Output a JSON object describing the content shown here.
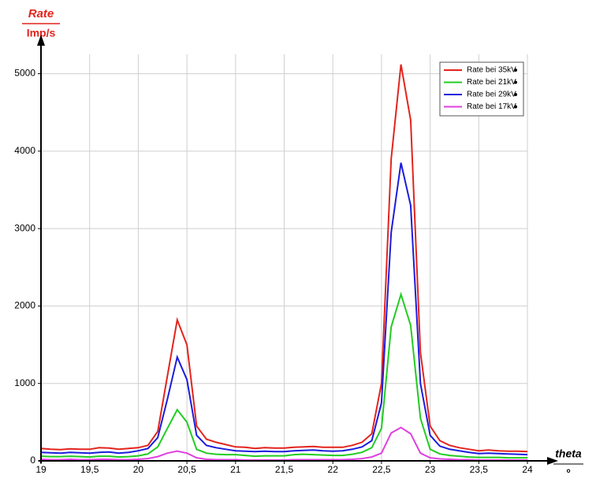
{
  "chart_data": {
    "type": "line",
    "y_label": "Rate",
    "y_unit": "Imp/s",
    "x_label": "theta",
    "x_unit": "°",
    "x": [
      19,
      19.1,
      19.2,
      19.3,
      19.4,
      19.5,
      19.6,
      19.7,
      19.8,
      19.9,
      20,
      20.1,
      20.2,
      20.3,
      20.4,
      20.5,
      20.6,
      20.7,
      20.8,
      20.9,
      21,
      21.1,
      21.2,
      21.3,
      21.4,
      21.5,
      21.6,
      21.7,
      21.8,
      21.9,
      22,
      22.1,
      22.2,
      22.3,
      22.4,
      22.5,
      22.6,
      22.7,
      22.8,
      22.9,
      23,
      23.1,
      23.2,
      23.3,
      23.4,
      23.5,
      23.6,
      23.7,
      23.8,
      23.9,
      24
    ],
    "series": [
      {
        "name": "Rate bei 35kV",
        "color": "#e3241c",
        "values": [
          160,
          150,
          145,
          155,
          150,
          150,
          170,
          165,
          150,
          160,
          170,
          200,
          380,
          1100,
          1820,
          1500,
          450,
          280,
          240,
          210,
          180,
          175,
          160,
          170,
          165,
          165,
          175,
          180,
          185,
          175,
          175,
          175,
          200,
          240,
          350,
          1000,
          3900,
          5120,
          4400,
          1400,
          450,
          260,
          200,
          170,
          150,
          130,
          140,
          130,
          125,
          125,
          120
        ]
      },
      {
        "name": "Rate bei 21kV",
        "color": "#22cc22",
        "values": [
          60,
          55,
          55,
          60,
          55,
          50,
          60,
          60,
          50,
          55,
          65,
          90,
          180,
          420,
          660,
          500,
          150,
          100,
          85,
          80,
          80,
          70,
          60,
          65,
          65,
          65,
          80,
          85,
          80,
          75,
          70,
          70,
          85,
          110,
          170,
          420,
          1730,
          2150,
          1750,
          550,
          150,
          90,
          70,
          60,
          50,
          45,
          45,
          45,
          40,
          40,
          40
        ]
      },
      {
        "name": "Rate bei 29kV",
        "color": "#1c1cdc",
        "values": [
          110,
          105,
          100,
          110,
          105,
          100,
          110,
          115,
          100,
          110,
          130,
          160,
          300,
          800,
          1340,
          1050,
          330,
          200,
          170,
          150,
          130,
          125,
          120,
          125,
          120,
          120,
          130,
          135,
          140,
          130,
          125,
          130,
          150,
          180,
          260,
          750,
          2950,
          3850,
          3300,
          1000,
          330,
          190,
          150,
          130,
          110,
          95,
          100,
          95,
          90,
          85,
          80
        ]
      },
      {
        "name": "Rate bei 17kV",
        "color": "#e040e0",
        "values": [
          20,
          15,
          15,
          20,
          15,
          15,
          20,
          20,
          15,
          15,
          20,
          30,
          55,
          100,
          125,
          100,
          40,
          20,
          15,
          15,
          15,
          10,
          10,
          10,
          10,
          10,
          15,
          15,
          15,
          15,
          15,
          15,
          20,
          30,
          50,
          100,
          360,
          430,
          350,
          100,
          40,
          25,
          20,
          15,
          15,
          10,
          10,
          10,
          10,
          10,
          10
        ]
      }
    ],
    "xlim": [
      19,
      24
    ],
    "ylim": [
      0,
      5250
    ],
    "xticks": [
      19,
      {
        "value": 19.5,
        "label": "19,5"
      },
      20,
      {
        "value": 20.5,
        "label": "20,5"
      },
      21,
      {
        "value": 21.5,
        "label": "21,5"
      },
      22,
      {
        "value": 22.5,
        "label": "22,5"
      },
      23,
      {
        "value": 23.5,
        "label": "23,5"
      },
      24
    ],
    "yticks": [
      0,
      1000,
      2000,
      3000,
      4000,
      5000
    ],
    "grid": true,
    "legend": "top-right"
  }
}
